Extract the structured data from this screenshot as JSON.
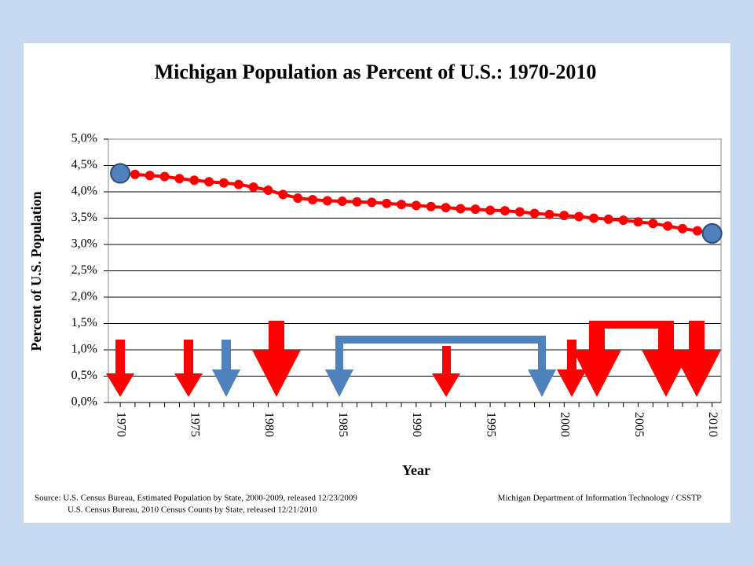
{
  "chart_data": {
    "type": "line",
    "title": "Michigan Population as Percent of U.S.: 1970-2010",
    "x_label": "Year",
    "y_label": "Percent of U.S. Population",
    "x": [
      1970,
      1971,
      1972,
      1973,
      1974,
      1975,
      1976,
      1977,
      1978,
      1979,
      1980,
      1981,
      1982,
      1983,
      1984,
      1985,
      1986,
      1987,
      1988,
      1989,
      1990,
      1991,
      1992,
      1993,
      1994,
      1995,
      1996,
      1997,
      1998,
      1999,
      2000,
      2001,
      2002,
      2003,
      2004,
      2005,
      2006,
      2007,
      2008,
      2009,
      2010
    ],
    "series": [
      {
        "name": "Michigan",
        "color": "#ff0000",
        "values": [
          4.35,
          4.33,
          4.31,
          4.29,
          4.25,
          4.22,
          4.19,
          4.17,
          4.14,
          4.09,
          4.03,
          3.95,
          3.88,
          3.85,
          3.83,
          3.82,
          3.81,
          3.8,
          3.78,
          3.76,
          3.74,
          3.72,
          3.7,
          3.68,
          3.67,
          3.65,
          3.64,
          3.62,
          3.59,
          3.57,
          3.55,
          3.53,
          3.5,
          3.48,
          3.46,
          3.43,
          3.4,
          3.35,
          3.3,
          3.26,
          3.21
        ]
      }
    ],
    "endpoint_color": "#4f81bd",
    "xlim": [
      1969.2,
      2010.6
    ],
    "xticks": [
      1970,
      1975,
      1980,
      1985,
      1990,
      1995,
      2000,
      2005,
      2010
    ],
    "ylim": [
      0,
      5
    ],
    "yticks": [
      {
        "value": 0,
        "label": "0,0%"
      },
      {
        "value": 0.5,
        "label": "0,5%"
      },
      {
        "value": 1,
        "label": "1,0%"
      },
      {
        "value": 1.5,
        "label": "1,5%"
      },
      {
        "value": 2,
        "label": "2,0%"
      },
      {
        "value": 2.5,
        "label": "2,5%"
      },
      {
        "value": 3,
        "label": "3,0%"
      },
      {
        "value": 3.5,
        "label": "3,5%"
      },
      {
        "value": 4,
        "label": "4,0%"
      },
      {
        "value": 4.5,
        "label": "4,5%"
      },
      {
        "value": 5,
        "label": "5,0%"
      }
    ],
    "grid": true,
    "source_lines": [
      "Source:  U.S.  Census Bureau, Estimated Population by State, 2000-2009, released 12/23/2009",
      "U.S.  Census Bureau, 2010 Census  Counts by State, released 12/21/2010"
    ],
    "credit": "Michigan Department of Information Technology / CSSTP"
  }
}
